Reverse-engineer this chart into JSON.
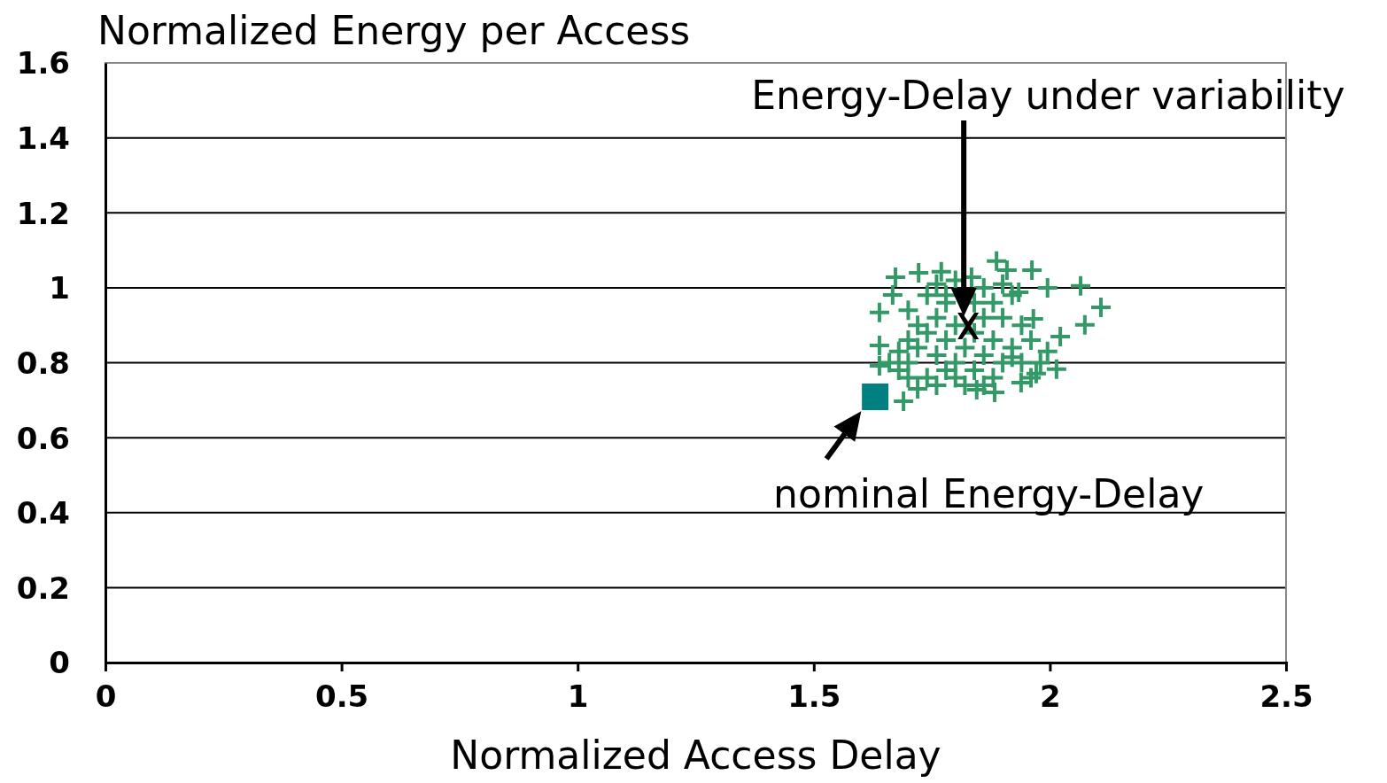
{
  "chart_data": {
    "type": "scatter",
    "ylabel": "Normalized Energy per Access",
    "xlabel": "Normalized Access Delay",
    "xlim": [
      0,
      2.5
    ],
    "xticks": [
      0,
      0.5,
      1,
      1.5,
      2,
      2.5
    ],
    "ylim": [
      0,
      1.6
    ],
    "yticks": [
      0,
      0.2,
      0.4,
      0.6,
      0.8,
      1,
      1.2,
      1.4,
      1.6
    ],
    "grid": "y",
    "series": [
      {
        "color": "#339966",
        "marker": "cross",
        "x": [
          1.673,
          1.722,
          1.667,
          1.639,
          1.887,
          1.962,
          1.995,
          2.065,
          2.108,
          2.074,
          2.022,
          2.014,
          1.971,
          1.939,
          1.883,
          1.845,
          1.69,
          1.639,
          1.639,
          1.965,
          1.995,
          1.92,
          1.77,
          1.834,
          1.909,
          1.934,
          1.7,
          1.72,
          1.74,
          1.76,
          1.78,
          1.8,
          1.82,
          1.84,
          1.86,
          1.88,
          1.68,
          1.7,
          1.74,
          1.78,
          1.8,
          1.84,
          1.86,
          1.9,
          1.92,
          1.76,
          1.72,
          1.7,
          1.68,
          1.66,
          1.8,
          1.78,
          1.78,
          1.86,
          1.88,
          1.9,
          1.94,
          1.96,
          1.74,
          1.76,
          1.8,
          1.84,
          1.9,
          1.92,
          1.82,
          1.88,
          1.76,
          1.72,
          1.94,
          1.98,
          1.7,
          1.86,
          1.96
        ],
        "values": [
          1.028,
          1.04,
          0.981,
          0.934,
          1.071,
          1.047,
          1.0,
          1.005,
          0.948,
          0.901,
          0.87,
          0.783,
          0.771,
          0.747,
          0.721,
          0.728,
          0.697,
          0.792,
          0.846,
          0.917,
          0.83,
          0.815,
          1.043,
          1.028,
          1.047,
          0.988,
          0.8,
          0.84,
          0.88,
          0.82,
          0.86,
          0.8,
          0.84,
          0.78,
          0.82,
          0.86,
          0.78,
          0.76,
          0.76,
          0.78,
          0.76,
          0.88,
          0.92,
          0.8,
          0.84,
          0.92,
          0.9,
          0.86,
          0.83,
          0.8,
          0.9,
          0.96,
          0.98,
          1.0,
          0.96,
          0.92,
          0.9,
          0.86,
          0.98,
          1.01,
          1.02,
          0.96,
          1.01,
          0.98,
          0.74,
          0.76,
          0.74,
          0.73,
          0.8,
          0.8,
          0.94,
          0.74,
          0.76
        ]
      },
      {
        "color": "#008080",
        "marker": "square",
        "x": [
          1.63
        ],
        "values": [
          0.709
        ]
      },
      {
        "color": "#000000",
        "marker": "x",
        "x": [
          1.827
        ],
        "values": [
          0.898
        ]
      }
    ],
    "annotations": [
      "Energy-Delay under variability",
      "nominal Energy-Delay"
    ]
  }
}
